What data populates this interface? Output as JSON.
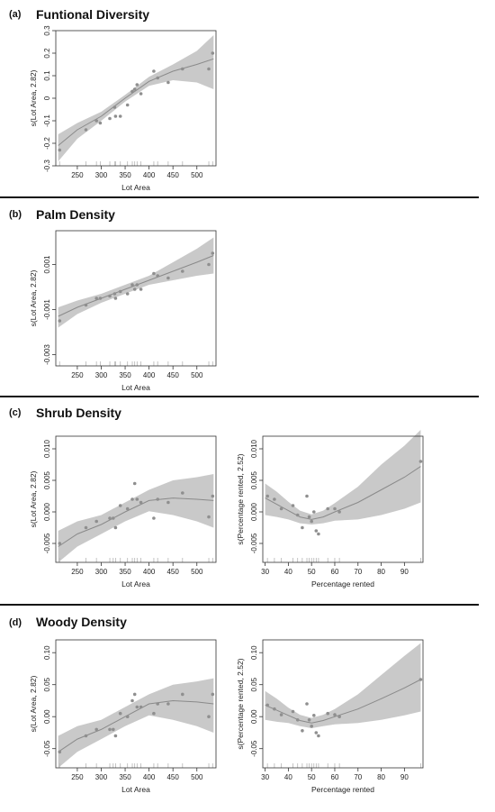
{
  "panels": [
    {
      "letter": "(a)",
      "title": "Funtional Diversity"
    },
    {
      "letter": "(b)",
      "title": "Palm Density"
    },
    {
      "letter": "(c)",
      "title": "Shrub Density"
    },
    {
      "letter": "(d)",
      "title": "Woody Density"
    }
  ],
  "chart_data": [
    {
      "id": "fd-lotarea",
      "type": "scatter",
      "panel": "(a)",
      "xlabel": "Lot Area",
      "ylabel": "s(Lot Area, 2.82)",
      "xlim": [
        205,
        540
      ],
      "ylim": [
        -0.3,
        0.3
      ],
      "xticks": [
        250,
        300,
        350,
        400,
        450,
        500
      ],
      "yticks": [
        -0.3,
        -0.2,
        -0.1,
        0.0,
        0.1,
        0.2,
        0.3
      ],
      "ytick_labels": [
        "-0.3",
        "-0.2",
        "-0.1",
        "0",
        "0.1",
        "0.2",
        "0.3"
      ],
      "fit": {
        "x": [
          210,
          250,
          300,
          350,
          400,
          450,
          500,
          535
        ],
        "y": [
          -0.21,
          -0.14,
          -0.08,
          0.0,
          0.075,
          0.12,
          0.15,
          0.175
        ]
      },
      "ci_upper": [
        -0.16,
        -0.11,
        -0.06,
        0.015,
        0.095,
        0.15,
        0.21,
        0.28
      ],
      "ci_lower": [
        -0.28,
        -0.18,
        -0.1,
        -0.015,
        0.055,
        0.08,
        0.07,
        0.04
      ],
      "points": {
        "x": [
          213,
          268,
          290,
          298,
          318,
          328,
          330,
          340,
          355,
          365,
          370,
          375,
          383,
          410,
          418,
          440,
          470,
          525,
          533
        ],
        "y": [
          -0.23,
          -0.14,
          -0.1,
          -0.11,
          -0.09,
          -0.04,
          -0.08,
          -0.08,
          -0.03,
          0.03,
          0.04,
          0.06,
          0.02,
          0.12,
          0.09,
          0.07,
          0.13,
          0.13,
          0.2
        ]
      },
      "rug": [
        213,
        268,
        290,
        298,
        318,
        328,
        330,
        340,
        355,
        365,
        370,
        375,
        383,
        410,
        418,
        440,
        470,
        525,
        533
      ]
    },
    {
      "id": "pd-lotarea",
      "type": "scatter",
      "panel": "(b)",
      "xlabel": "Lot Area",
      "ylabel": "s(Lot Area, 2.82)",
      "xlim": [
        205,
        540
      ],
      "ylim": [
        -0.0035,
        0.0025
      ],
      "xticks": [
        250,
        300,
        350,
        400,
        450,
        500
      ],
      "yticks": [
        -0.003,
        -0.001,
        0.001
      ],
      "ytick_labels": [
        "-0.003",
        "-0.001",
        "0.001"
      ],
      "fit": {
        "x": [
          210,
          250,
          300,
          350,
          400,
          450,
          500,
          535
        ],
        "y": [
          -0.0013,
          -0.0009,
          -0.0005,
          -0.0001,
          0.0003,
          0.0007,
          0.0011,
          0.0014
        ]
      },
      "ci_upper": [
        -0.0009,
        -0.0006,
        -0.0003,
        0.0001,
        0.0005,
        0.0011,
        0.0017,
        0.0022
      ],
      "ci_lower": [
        -0.0018,
        -0.0012,
        -0.0007,
        -0.0003,
        0.0001,
        0.0003,
        0.0005,
        0.0006
      ],
      "points": {
        "x": [
          213,
          268,
          290,
          298,
          318,
          328,
          330,
          340,
          355,
          365,
          370,
          375,
          383,
          410,
          418,
          440,
          470,
          525,
          533
        ],
        "y": [
          -0.0015,
          -0.0008,
          -0.0005,
          -0.0005,
          -0.0004,
          -0.0003,
          -0.0005,
          -0.0002,
          -0.0003,
          0.0001,
          -0.0001,
          0.0001,
          -0.0001,
          0.0006,
          0.0005,
          0.0004,
          0.0007,
          0.001,
          0.0015
        ]
      },
      "rug": [
        213,
        268,
        290,
        298,
        318,
        328,
        330,
        340,
        355,
        365,
        370,
        375,
        383,
        410,
        418,
        440,
        470,
        525,
        533
      ]
    },
    {
      "id": "sd-lotarea",
      "type": "scatter",
      "panel": "(c)",
      "xlabel": "Lot Area",
      "ylabel": "s(Lot Area, 2.82)",
      "xlim": [
        205,
        540
      ],
      "ylim": [
        -0.008,
        0.012
      ],
      "xticks": [
        250,
        300,
        350,
        400,
        450,
        500
      ],
      "yticks": [
        -0.005,
        0.0,
        0.005,
        0.01
      ],
      "ytick_labels": [
        "-0.005",
        "0.000",
        "0.005",
        "0.010"
      ],
      "fit": {
        "x": [
          210,
          250,
          300,
          350,
          400,
          450,
          500,
          535
        ],
        "y": [
          -0.0055,
          -0.0035,
          -0.002,
          0.0,
          0.0018,
          0.0022,
          0.002,
          0.0018
        ]
      },
      "ci_upper": [
        -0.003,
        -0.0015,
        -0.0005,
        0.0015,
        0.0035,
        0.005,
        0.0055,
        0.006
      ],
      "ci_lower": [
        -0.008,
        -0.0055,
        -0.0035,
        -0.0015,
        0.0001,
        -0.0005,
        -0.0015,
        -0.0025
      ],
      "points": {
        "x": [
          213,
          268,
          290,
          318,
          325,
          330,
          340,
          355,
          365,
          370,
          375,
          383,
          410,
          418,
          440,
          470,
          525,
          533
        ],
        "y": [
          -0.005,
          -0.0025,
          -0.0015,
          -0.001,
          -0.001,
          -0.0025,
          0.001,
          0.0005,
          0.002,
          0.0045,
          0.002,
          0.0015,
          -0.001,
          0.002,
          0.0015,
          0.003,
          -0.0008,
          0.0025
        ]
      },
      "rug": [
        213,
        268,
        290,
        318,
        325,
        330,
        340,
        355,
        365,
        370,
        375,
        383,
        410,
        418,
        440,
        470,
        525,
        533
      ]
    },
    {
      "id": "sd-rented",
      "type": "scatter",
      "panel": "(c)",
      "xlabel": "Percentage rented",
      "ylabel": "s(Percentage rented, 2.52)",
      "xlim": [
        29,
        98
      ],
      "ylim": [
        -0.008,
        0.012
      ],
      "xticks": [
        30,
        40,
        50,
        60,
        70,
        80,
        90
      ],
      "yticks": [
        -0.005,
        0.0,
        0.005,
        0.01
      ],
      "ytick_labels": [
        "-0.005",
        "0.000",
        "0.005",
        "0.010"
      ],
      "fit": {
        "x": [
          30,
          35,
          40,
          45,
          50,
          55,
          60,
          70,
          80,
          90,
          97
        ],
        "y": [
          0.0022,
          0.0012,
          0.0002,
          -0.0008,
          -0.0012,
          -0.0008,
          0.0,
          0.0015,
          0.0035,
          0.0055,
          0.0072
        ]
      },
      "ci_upper": [
        0.0045,
        0.0032,
        0.0016,
        0.0002,
        -0.0004,
        0.0002,
        0.0014,
        0.004,
        0.0075,
        0.0105,
        0.013
      ],
      "ci_lower": [
        -0.0005,
        -0.0008,
        -0.0012,
        -0.0018,
        -0.002,
        -0.0018,
        -0.0014,
        -0.0012,
        -0.0005,
        0.0005,
        0.0015
      ],
      "points": {
        "x": [
          31,
          34,
          37,
          42,
          44,
          46,
          48,
          49,
          50,
          51,
          52,
          53,
          57,
          60,
          62,
          97
        ],
        "y": [
          0.0025,
          0.002,
          0.0005,
          0.001,
          -0.0005,
          -0.0025,
          0.0025,
          -0.0008,
          -0.0015,
          0.0,
          -0.003,
          -0.0035,
          0.0005,
          0.0005,
          0.0,
          0.008
        ]
      },
      "rug": [
        31,
        34,
        37,
        42,
        44,
        46,
        48,
        49,
        50,
        51,
        52,
        53,
        57,
        60,
        62,
        97
      ]
    },
    {
      "id": "wd-lotarea",
      "type": "scatter",
      "panel": "(d)",
      "xlabel": "Lot Area",
      "ylabel": "s(Lot Area, 2.82)",
      "xlim": [
        205,
        540
      ],
      "ylim": [
        -0.08,
        0.12
      ],
      "xticks": [
        250,
        300,
        350,
        400,
        450,
        500
      ],
      "yticks": [
        -0.05,
        0.0,
        0.05,
        0.1
      ],
      "ytick_labels": [
        "-0.05",
        "0.00",
        "0.05",
        "0.10"
      ],
      "fit": {
        "x": [
          210,
          250,
          300,
          350,
          400,
          450,
          500,
          535
        ],
        "y": [
          -0.055,
          -0.035,
          -0.02,
          0.0,
          0.02,
          0.025,
          0.023,
          0.02
        ]
      },
      "ci_upper": [
        -0.03,
        -0.015,
        -0.005,
        0.015,
        0.035,
        0.05,
        0.055,
        0.06
      ],
      "ci_lower": [
        -0.08,
        -0.055,
        -0.035,
        -0.015,
        0.002,
        -0.005,
        -0.015,
        -0.025
      ],
      "points": {
        "x": [
          213,
          268,
          290,
          318,
          325,
          330,
          340,
          355,
          365,
          370,
          375,
          383,
          410,
          418,
          440,
          470,
          525,
          533
        ],
        "y": [
          -0.055,
          -0.03,
          -0.02,
          -0.02,
          -0.02,
          -0.03,
          0.005,
          0.0,
          0.025,
          0.035,
          0.015,
          0.015,
          0.005,
          0.02,
          0.02,
          0.035,
          0.0,
          0.035
        ]
      },
      "rug": [
        213,
        268,
        290,
        318,
        325,
        330,
        340,
        355,
        365,
        370,
        375,
        383,
        410,
        418,
        440,
        470,
        525,
        533
      ]
    },
    {
      "id": "wd-rented",
      "type": "scatter",
      "panel": "(d)",
      "xlabel": "Percentage rented",
      "ylabel": "s(Percentage rented, 2.52)",
      "xlim": [
        29,
        98
      ],
      "ylim": [
        -0.08,
        0.12
      ],
      "xticks": [
        30,
        40,
        50,
        60,
        70,
        80,
        90
      ],
      "yticks": [
        -0.05,
        0.0,
        0.05,
        0.1
      ],
      "ytick_labels": [
        "-0.05",
        "0.00",
        "0.05",
        "0.10"
      ],
      "fit": {
        "x": [
          30,
          35,
          40,
          45,
          50,
          55,
          60,
          70,
          80,
          90,
          97
        ],
        "y": [
          0.018,
          0.01,
          0.002,
          -0.006,
          -0.01,
          -0.006,
          0.0,
          0.012,
          0.028,
          0.045,
          0.058
        ]
      },
      "ci_upper": [
        0.04,
        0.028,
        0.014,
        0.003,
        -0.002,
        0.003,
        0.012,
        0.035,
        0.065,
        0.095,
        0.115
      ],
      "ci_lower": [
        -0.005,
        -0.008,
        -0.01,
        -0.015,
        -0.018,
        -0.015,
        -0.012,
        -0.01,
        -0.005,
        0.002,
        0.008
      ],
      "points": {
        "x": [
          31,
          34,
          37,
          42,
          44,
          46,
          48,
          49,
          50,
          51,
          52,
          53,
          57,
          60,
          62,
          97
        ],
        "y": [
          0.018,
          0.012,
          0.003,
          0.008,
          -0.005,
          -0.022,
          0.02,
          -0.005,
          -0.015,
          0.002,
          -0.025,
          -0.03,
          0.005,
          0.003,
          0.0,
          0.058
        ]
      },
      "rug": [
        31,
        34,
        37,
        42,
        44,
        46,
        48,
        49,
        50,
        51,
        52,
        53,
        57,
        60,
        62,
        97
      ]
    }
  ]
}
